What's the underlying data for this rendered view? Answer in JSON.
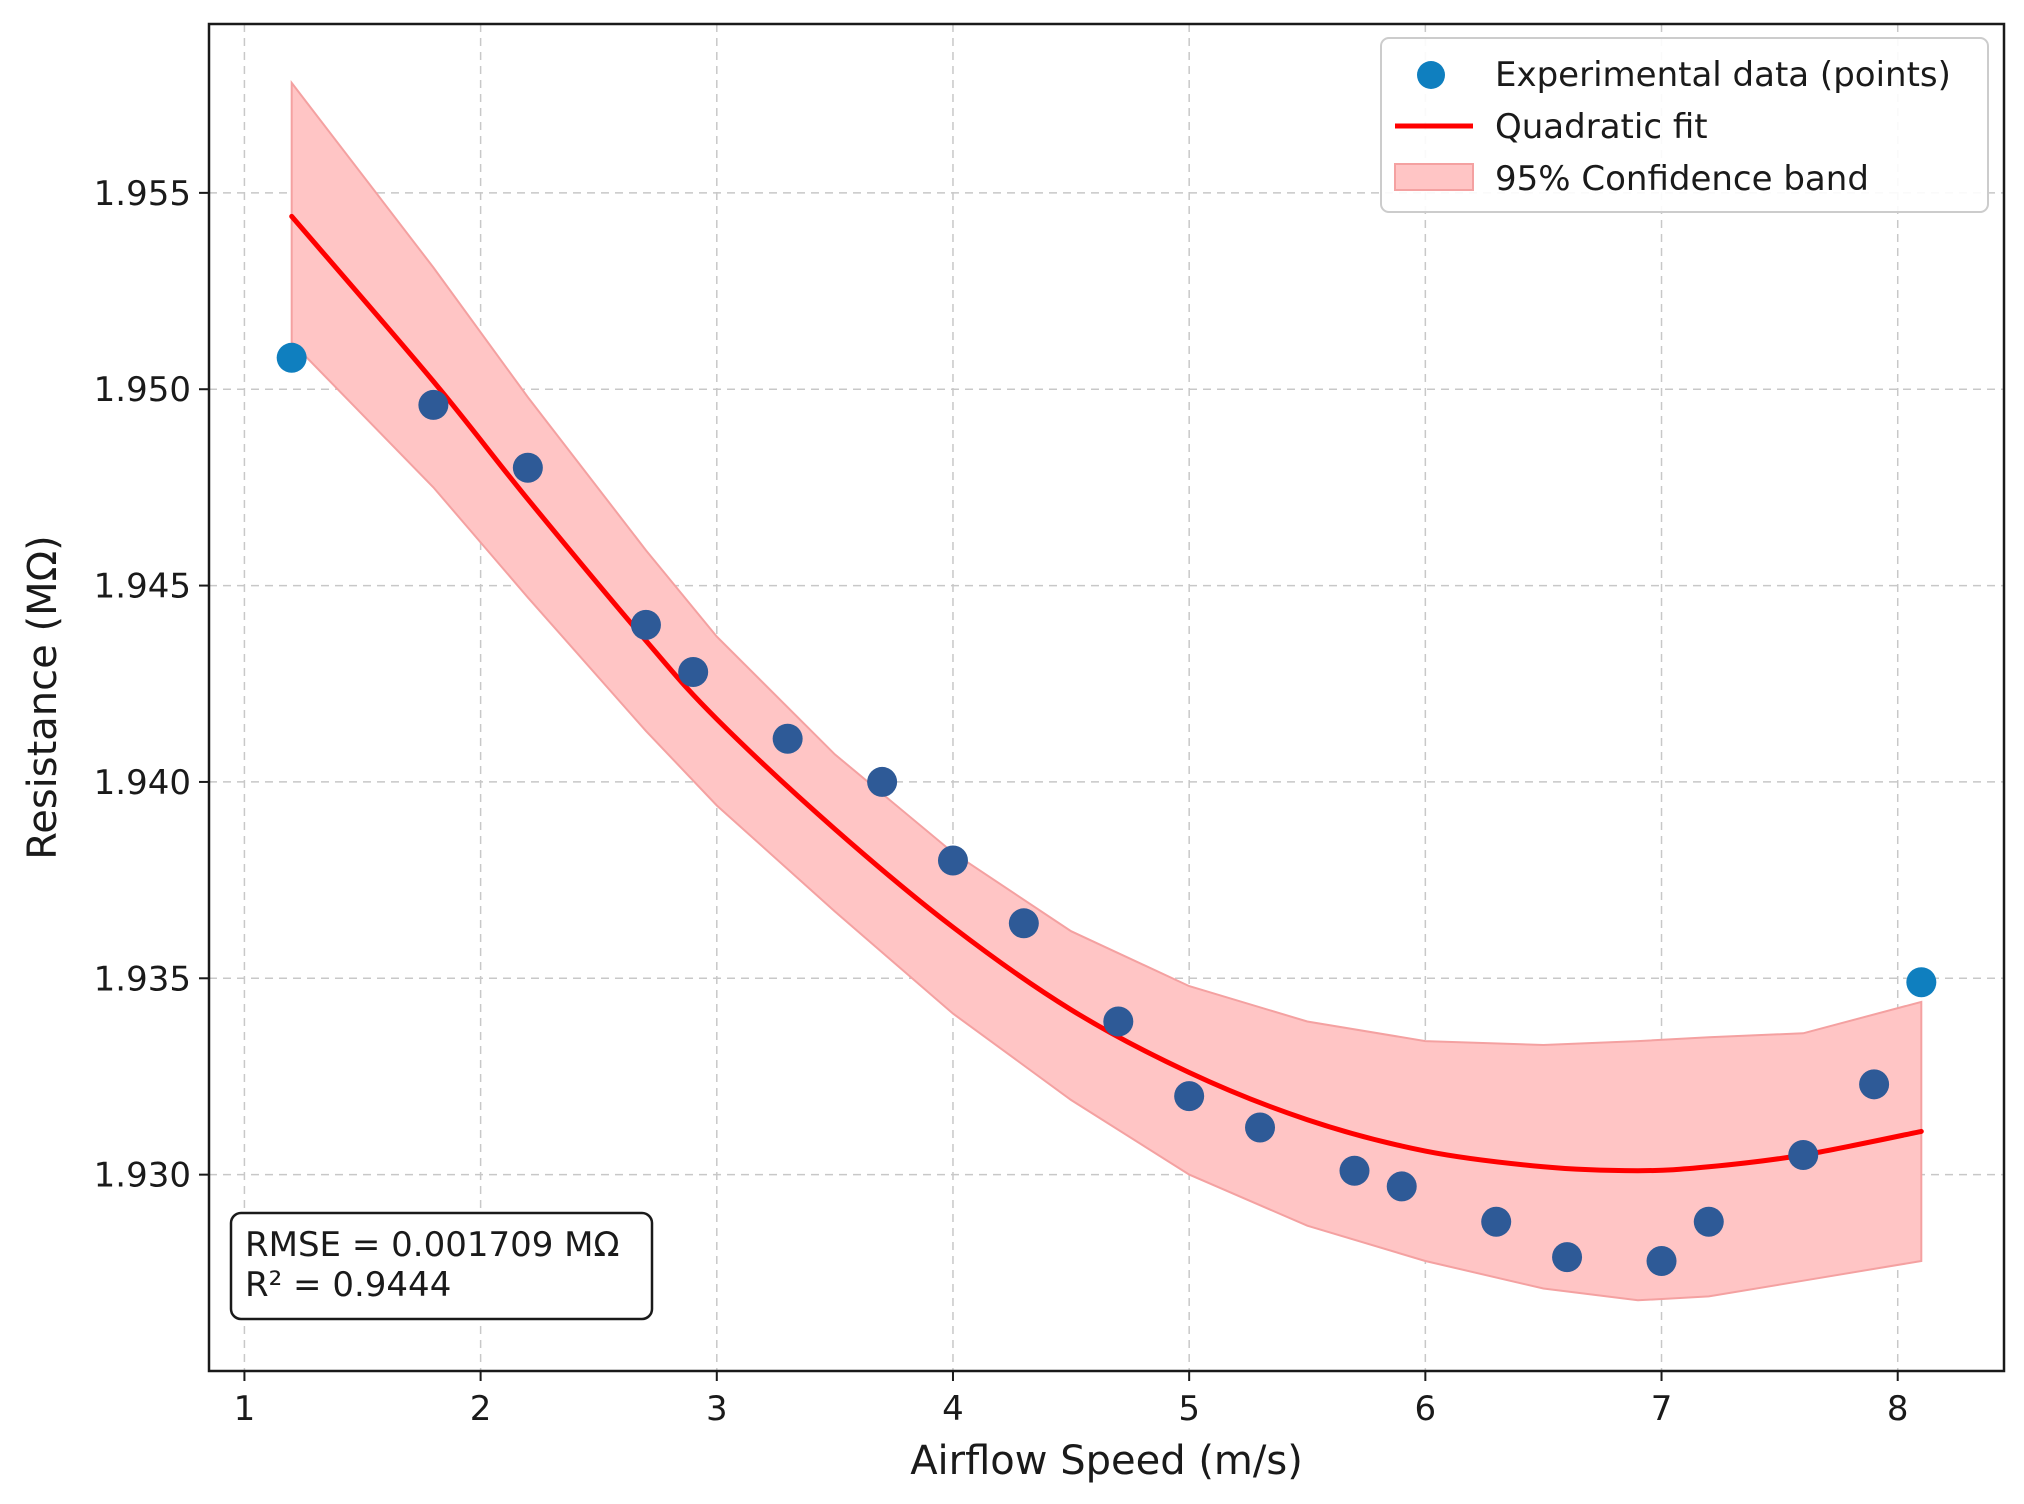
{
  "colors": {
    "points": "#2e5a97",
    "points_edge": "#0f7fbf",
    "fit": "#ff0000",
    "band_fill": "#ffc5c5",
    "band_edge": "#f4a1a1",
    "grid": "#c8c8c8",
    "axis": "#1a1a1a"
  },
  "chart_data": {
    "type": "scatter",
    "title": "",
    "xlabel": "Airflow Speed (m/s)",
    "ylabel": "Resistance (MΩ)",
    "xlim": [
      0.85,
      8.45
    ],
    "ylim": [
      1.925,
      1.9593
    ],
    "xticks": [
      1,
      2,
      3,
      4,
      5,
      6,
      7,
      8
    ],
    "xtick_labels": [
      "1",
      "2",
      "3",
      "4",
      "5",
      "6",
      "7",
      "8"
    ],
    "yticks": [
      1.93,
      1.935,
      1.94,
      1.945,
      1.95,
      1.955
    ],
    "ytick_labels": [
      "1.930",
      "1.935",
      "1.940",
      "1.945",
      "1.950",
      "1.955"
    ],
    "grid": true,
    "legend_position": "top-right",
    "series": [
      {
        "name": "Experimental data (points)",
        "kind": "scatter",
        "x": [
          1.2,
          1.8,
          2.2,
          2.7,
          2.9,
          3.3,
          3.7,
          4.0,
          4.3,
          4.7,
          5.0,
          5.3,
          5.7,
          5.9,
          6.3,
          6.6,
          7.0,
          7.2,
          7.6,
          7.9,
          8.1
        ],
        "y": [
          1.9508,
          1.9496,
          1.948,
          1.944,
          1.9428,
          1.9411,
          1.94,
          1.938,
          1.9364,
          1.9339,
          1.932,
          1.9312,
          1.9301,
          1.9297,
          1.9288,
          1.9279,
          1.9278,
          1.9288,
          1.9305,
          1.9323,
          1.9349
        ]
      },
      {
        "name": "Quadratic fit",
        "kind": "line",
        "x": [
          1.2,
          1.8,
          2.2,
          2.7,
          3.0,
          3.5,
          4.0,
          4.5,
          5.0,
          5.5,
          6.0,
          6.5,
          6.9,
          7.2,
          7.6,
          8.1
        ],
        "y": [
          1.9544,
          1.9502,
          1.9472,
          1.9436,
          1.9416,
          1.9388,
          1.9363,
          1.9342,
          1.9326,
          1.9314,
          1.9306,
          1.9302,
          1.9301,
          1.9302,
          1.9305,
          1.9311
        ]
      },
      {
        "name": "95% Confidence band",
        "kind": "band",
        "x": [
          1.2,
          1.8,
          2.2,
          2.7,
          3.0,
          3.5,
          4.0,
          4.5,
          5.0,
          5.5,
          6.0,
          6.5,
          6.9,
          7.2,
          7.6,
          8.1
        ],
        "upper": [
          1.9578,
          1.9531,
          1.9498,
          1.9459,
          1.9437,
          1.9407,
          1.9382,
          1.9362,
          1.9348,
          1.9339,
          1.9334,
          1.9333,
          1.9334,
          1.9335,
          1.9336,
          1.9344
        ],
        "lower": [
          1.9512,
          1.9475,
          1.9447,
          1.9413,
          1.9394,
          1.9367,
          1.9341,
          1.9319,
          1.93,
          1.9287,
          1.9278,
          1.9271,
          1.9268,
          1.9269,
          1.9273,
          1.9278
        ]
      }
    ],
    "annotation": {
      "lines": [
        "RMSE = 0.001709 MΩ",
        "R² = 0.9444"
      ],
      "position": "bottom-left"
    }
  }
}
